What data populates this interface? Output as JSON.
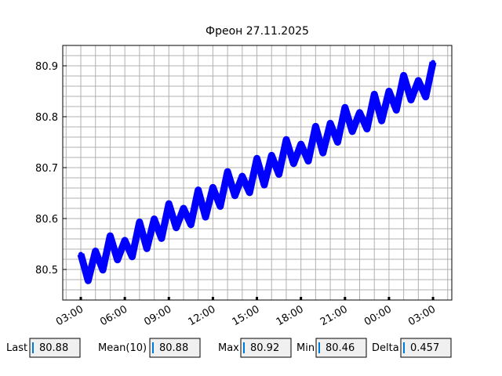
{
  "chart_data": {
    "type": "line",
    "title": "Фреон 27.11.2025",
    "xlim": [
      1.77,
      28.28
    ],
    "ylim": [
      80.44,
      80.94
    ],
    "xticks": [
      {
        "value": 3,
        "label": "03:00"
      },
      {
        "value": 6,
        "label": "06:00"
      },
      {
        "value": 9,
        "label": "09:00"
      },
      {
        "value": 12,
        "label": "12:00"
      },
      {
        "value": 15,
        "label": "15:00"
      },
      {
        "value": 18,
        "label": "18:00"
      },
      {
        "value": 21,
        "label": "21:00"
      },
      {
        "value": 24,
        "label": "00:00"
      },
      {
        "value": 27,
        "label": "03:00"
      }
    ],
    "yticks": [
      80.5,
      80.6,
      80.7,
      80.8,
      80.9
    ],
    "xticks_minor": [
      2,
      3,
      4,
      5,
      6,
      7,
      8,
      9,
      10,
      11,
      12,
      13,
      14,
      15,
      16,
      17,
      18,
      19,
      20,
      21,
      22,
      23,
      24,
      25,
      26,
      27,
      28
    ],
    "yticks_minor": [
      80.44,
      80.46,
      80.48,
      80.5,
      80.52,
      80.54,
      80.56,
      80.58,
      80.6,
      80.62,
      80.64,
      80.66,
      80.68,
      80.7,
      80.72,
      80.74,
      80.76,
      80.78,
      80.8,
      80.82,
      80.84,
      80.86,
      80.88,
      80.9,
      80.92,
      80.94
    ],
    "grid": true,
    "series": [
      {
        "color": "#0000ff",
        "x": [
          3.0,
          3.5,
          4.0,
          4.5,
          5.0,
          5.5,
          6.0,
          6.5,
          7.0,
          7.5,
          8.0,
          8.5,
          9.0,
          9.5,
          10.0,
          10.5,
          11.0,
          11.5,
          12.0,
          12.5,
          13.0,
          13.5,
          14.0,
          14.5,
          15.0,
          15.5,
          16.0,
          16.5,
          17.0,
          17.5,
          18.0,
          18.5,
          19.0,
          19.5,
          20.0,
          20.5,
          21.0,
          21.5,
          22.0,
          22.5,
          23.0,
          23.5,
          24.0,
          24.5,
          25.0,
          25.5,
          26.0,
          26.5,
          27.0
        ],
        "values": [
          80.53,
          80.478,
          80.536,
          80.499,
          80.566,
          80.519,
          80.557,
          80.525,
          80.593,
          80.541,
          80.599,
          80.561,
          80.629,
          80.582,
          80.62,
          80.588,
          80.656,
          80.603,
          80.661,
          80.624,
          80.692,
          80.645,
          80.683,
          80.651,
          80.718,
          80.666,
          80.724,
          80.687,
          80.755,
          80.708,
          80.746,
          80.713,
          80.781,
          80.729,
          80.787,
          80.75,
          80.818,
          80.771,
          80.808,
          80.776,
          80.844,
          80.792,
          80.85,
          80.813,
          80.881,
          80.833,
          80.871,
          80.839,
          80.907
        ]
      }
    ]
  },
  "stats": [
    {
      "label": "Last",
      "value": 80.88
    },
    {
      "label": "Mean(10)",
      "value": 80.88
    },
    {
      "label": "Max",
      "value": 80.92
    },
    {
      "label": "Min",
      "value": 80.46
    },
    {
      "label": "Delta",
      "value": 0.457
    }
  ]
}
